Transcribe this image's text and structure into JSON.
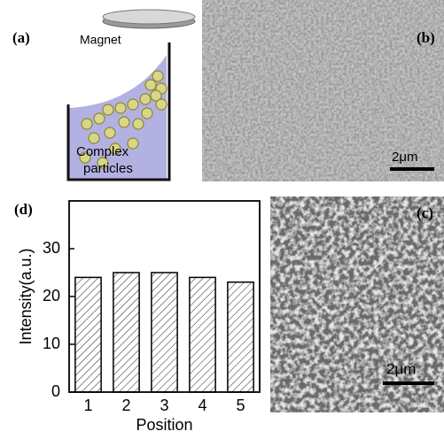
{
  "panels": {
    "a": "(a)",
    "b": "(b)",
    "c": "(c)",
    "d": "(d)"
  },
  "diagram": {
    "magnet": "Magnet",
    "particles_label": [
      "Complex",
      "particles"
    ]
  },
  "scale_bars": {
    "b": "2μm",
    "c": "2μm"
  },
  "chart_data": {
    "type": "bar",
    "categories": [
      "1",
      "2",
      "3",
      "4",
      "5"
    ],
    "values": [
      24,
      25,
      25,
      24,
      23
    ],
    "color": "#000000",
    "hatch": true,
    "ylim": [
      0,
      40
    ],
    "yticks": [
      0,
      10,
      20,
      30
    ],
    "xlabel": "Position",
    "ylabel": "Intensity(a.u.)",
    "grid": false
  }
}
